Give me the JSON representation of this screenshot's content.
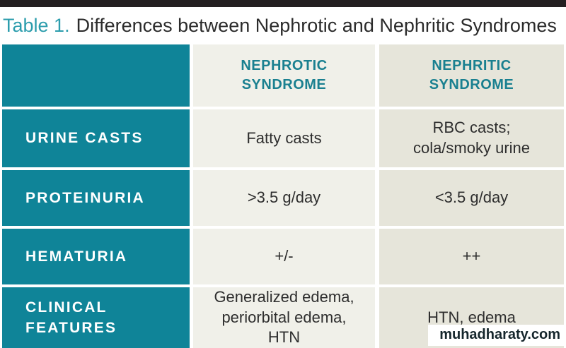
{
  "caption": {
    "label": "Table 1.",
    "text": "Differences between Nephrotic and Nephritic Syndromes"
  },
  "table": {
    "columns": [
      {
        "line1": "NEPHROTIC",
        "line2": "SYNDROME"
      },
      {
        "line1": "NEPHRITIC",
        "line2": "SYNDROME"
      }
    ],
    "rows": [
      {
        "header": "URINE CASTS",
        "nephrotic": "Fatty casts",
        "nephritic": "RBC casts; cola/smoky urine"
      },
      {
        "header": "PROTEINURIA",
        "nephrotic": ">3.5 g/day",
        "nephritic": "<3.5 g/day"
      },
      {
        "header": "HEMATURIA",
        "nephrotic": "+/-",
        "nephritic": "++"
      },
      {
        "header": "CLINICAL FEATURES",
        "nephrotic": "Generalized edema, periorbital edema, HTN",
        "nephritic": "HTN, edema"
      }
    ]
  },
  "watermark": "muhadharaty.com",
  "colors": {
    "teal": "#0f8498",
    "header_text_teal": "#1a8090",
    "light_cell": "#f0f0e9",
    "dark_cell": "#e6e5da",
    "top_bar": "#241f21",
    "caption_accent": "#2c9dad"
  }
}
